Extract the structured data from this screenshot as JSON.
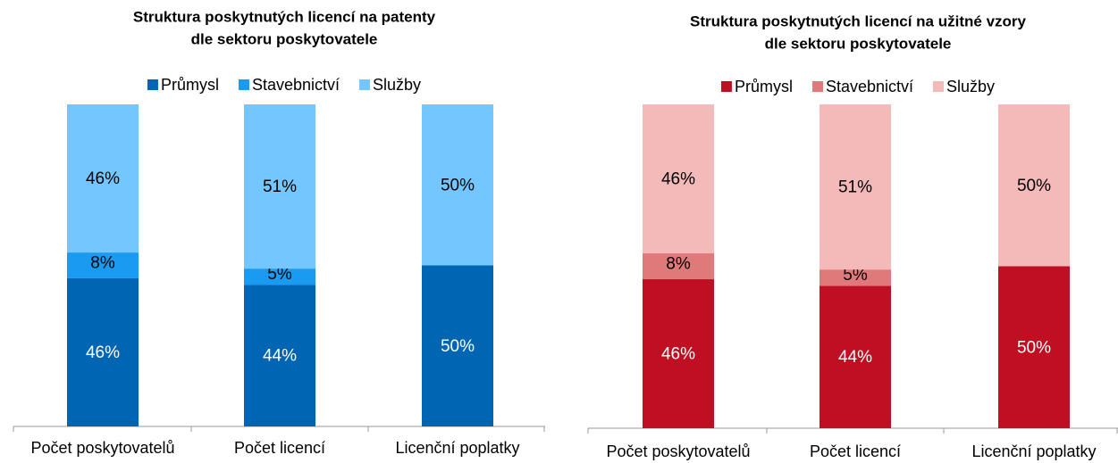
{
  "chart_data": [
    {
      "type": "stacked_bar",
      "title": "Struktura poskytnutých licencí na patenty",
      "subtitle": "dle sektoru poskytovatele",
      "categories": [
        "Počet poskytovatelů",
        "Počet licencí",
        "Licenční poplatky"
      ],
      "ylim": [
        0,
        100
      ],
      "series": [
        {
          "name": "Průmysl",
          "color": "#0066b3",
          "values": [
            46,
            44,
            50
          ],
          "value_labels": [
            "46%",
            "44%",
            "50%"
          ]
        },
        {
          "name": "Stavebnictví",
          "color": "#1a9af0",
          "values": [
            8,
            5,
            0
          ],
          "value_labels": [
            "8%",
            "5%",
            null
          ]
        },
        {
          "name": "Služby",
          "color": "#73c6ff",
          "values": [
            46,
            51,
            50
          ],
          "value_labels": [
            "46%",
            "51%",
            "50%"
          ]
        }
      ]
    },
    {
      "type": "stacked_bar",
      "title": "Struktura poskytnutých licencí na užitné vzory",
      "subtitle": "dle sektoru poskytovatele",
      "categories": [
        "Počet poskytovatelů",
        "Počet licencí",
        "Licenční poplatky"
      ],
      "ylim": [
        0,
        100
      ],
      "series": [
        {
          "name": "Průmysl",
          "color": "#c00f22",
          "values": [
            46,
            44,
            50
          ],
          "value_labels": [
            "46%",
            "44%",
            "50%"
          ]
        },
        {
          "name": "Stavebnictví",
          "color": "#e07a7a",
          "values": [
            8,
            5,
            0
          ],
          "value_labels": [
            "8%",
            "5%",
            null
          ]
        },
        {
          "name": "Služby",
          "color": "#f4b9b9",
          "values": [
            46,
            51,
            50
          ],
          "value_labels": [
            "46%",
            "51%",
            "50%"
          ]
        }
      ]
    }
  ]
}
